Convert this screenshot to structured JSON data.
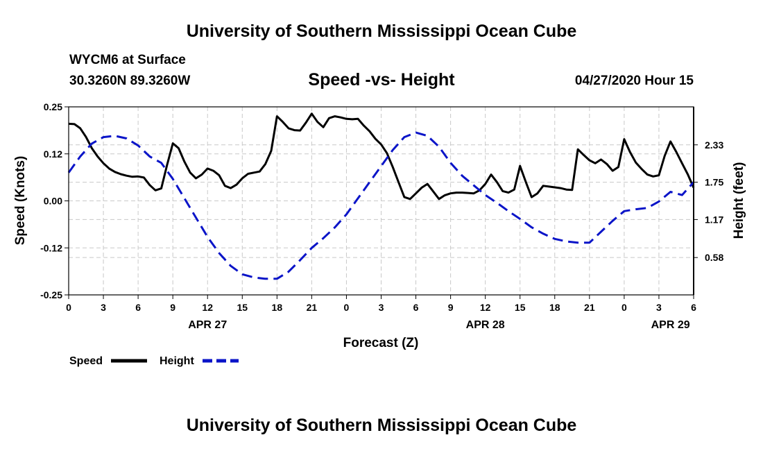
{
  "header": {
    "title": "University of Southern Mississippi Ocean Cube",
    "station": "WYCM6 at Surface",
    "coords": "30.3260N 89.3260W",
    "datetime": "04/27/2020 Hour 15"
  },
  "footer": {
    "title": "University of Southern Mississippi Ocean Cube"
  },
  "colors": {
    "speed": "#000000",
    "height": "#0a14c8",
    "grid": "#c8c8c8"
  },
  "chart_data": {
    "type": "line",
    "title": "Speed -vs- Height",
    "xlabel": "Forecast (Z)",
    "ylabel_left": "Speed (Knots)",
    "ylabel_right": "Height (feet)",
    "x_hours_range": [
      0,
      54
    ],
    "x_ticks": [
      {
        "h": 0,
        "label": "0"
      },
      {
        "h": 3,
        "label": "3"
      },
      {
        "h": 6,
        "label": "6"
      },
      {
        "h": 9,
        "label": "9"
      },
      {
        "h": 12,
        "label": "12"
      },
      {
        "h": 15,
        "label": "15"
      },
      {
        "h": 18,
        "label": "18"
      },
      {
        "h": 21,
        "label": "21"
      },
      {
        "h": 24,
        "label": "0"
      },
      {
        "h": 27,
        "label": "3"
      },
      {
        "h": 30,
        "label": "6"
      },
      {
        "h": 33,
        "label": "9"
      },
      {
        "h": 36,
        "label": "12"
      },
      {
        "h": 39,
        "label": "15"
      },
      {
        "h": 42,
        "label": "18"
      },
      {
        "h": 45,
        "label": "21"
      },
      {
        "h": 48,
        "label": "0"
      },
      {
        "h": 51,
        "label": "3"
      },
      {
        "h": 54,
        "label": "6"
      }
    ],
    "date_labels": [
      {
        "h": 12,
        "label": "APR 27"
      },
      {
        "h": 36,
        "label": "APR 28"
      },
      {
        "h": 52,
        "label": "APR 29"
      }
    ],
    "y_left_range": [
      -0.25,
      0.25
    ],
    "y_left_ticks": [
      {
        "v": 0.25,
        "label": "0.25"
      },
      {
        "v": 0.125,
        "label": "0.12"
      },
      {
        "v": 0.0,
        "label": "0.00"
      },
      {
        "v": -0.125,
        "label": "-0.12"
      },
      {
        "v": -0.25,
        "label": "-0.25"
      }
    ],
    "y_right_range": [
      0.0,
      2.92
    ],
    "y_right_ticks": [
      {
        "v": 2.33,
        "label": "2.33"
      },
      {
        "v": 1.75,
        "label": "1.75"
      },
      {
        "v": 1.17,
        "label": "1.17"
      },
      {
        "v": 0.58,
        "label": "0.58"
      }
    ],
    "grid": true,
    "legend": [
      {
        "name": "Speed",
        "style": "solid"
      },
      {
        "name": "Height",
        "style": "dashed"
      }
    ],
    "series": [
      {
        "name": "Speed",
        "axis": "left",
        "style": "solid",
        "x": [
          0,
          0.5,
          1,
          1.5,
          2,
          2.5,
          3,
          3.5,
          4,
          4.5,
          5,
          5.5,
          6,
          6.5,
          7,
          7.5,
          8,
          8.5,
          9,
          9.5,
          10,
          10.5,
          11,
          11.5,
          12,
          12.5,
          13,
          13.5,
          14,
          14.5,
          15,
          15.5,
          16,
          16.5,
          17,
          17.5,
          18,
          18.5,
          19,
          19.5,
          20,
          20.5,
          21,
          21.5,
          22,
          22.5,
          23,
          23.5,
          24,
          24.5,
          25,
          25.5,
          26,
          26.5,
          27,
          27.5,
          28,
          28.5,
          29,
          29.5,
          30,
          30.5,
          31,
          31.5,
          32,
          32.5,
          33,
          33.5,
          34,
          34.5,
          35,
          35.5,
          36,
          36.5,
          37,
          37.5,
          38,
          38.5,
          39,
          39.5,
          40,
          40.5,
          41,
          41.5,
          42,
          42.5,
          43,
          43.5,
          44,
          44.5,
          45,
          45.5,
          46,
          46.5,
          47,
          47.5,
          48,
          48.5,
          49,
          49.5,
          50,
          50.5,
          51,
          51.5,
          52,
          52.5,
          53,
          53.5,
          54
        ],
        "values": [
          0.205,
          0.204,
          0.193,
          0.17,
          0.14,
          0.118,
          0.1,
          0.086,
          0.077,
          0.071,
          0.067,
          0.064,
          0.065,
          0.062,
          0.042,
          0.028,
          0.033,
          0.095,
          0.153,
          0.14,
          0.104,
          0.075,
          0.06,
          0.07,
          0.086,
          0.08,
          0.068,
          0.04,
          0.034,
          0.043,
          0.06,
          0.072,
          0.075,
          0.078,
          0.098,
          0.133,
          0.225,
          0.21,
          0.193,
          0.188,
          0.187,
          0.208,
          0.232,
          0.21,
          0.196,
          0.22,
          0.225,
          0.222,
          0.218,
          0.217,
          0.218,
          0.2,
          0.185,
          0.165,
          0.15,
          0.127,
          0.09,
          0.05,
          0.01,
          0.005,
          0.02,
          0.035,
          0.045,
          0.025,
          0.005,
          0.015,
          0.02,
          0.022,
          0.022,
          0.021,
          0.02,
          0.028,
          0.045,
          0.07,
          0.05,
          0.026,
          0.022,
          0.03,
          0.093,
          0.05,
          0.01,
          0.02,
          0.04,
          0.038,
          0.036,
          0.034,
          0.03,
          0.029,
          0.137,
          0.122,
          0.108,
          0.1,
          0.11,
          0.098,
          0.08,
          0.09,
          0.164,
          0.13,
          0.102,
          0.085,
          0.07,
          0.065,
          0.068,
          0.12,
          0.158,
          0.13,
          0.1,
          0.07,
          0.035
        ]
      },
      {
        "name": "Height",
        "axis": "right",
        "style": "dashed",
        "x": [
          0,
          1,
          2,
          3,
          4,
          5,
          6,
          7,
          8,
          9,
          10,
          11,
          12,
          13,
          14,
          15,
          16,
          17,
          18,
          19,
          20,
          21,
          22,
          23,
          24,
          25,
          26,
          27,
          28,
          29,
          30,
          31,
          32,
          33,
          34,
          35,
          36,
          37,
          38,
          39,
          40,
          41,
          42,
          43,
          44,
          45,
          46,
          47,
          48,
          49,
          50,
          51,
          52,
          53,
          54
        ],
        "values": [
          1.9,
          2.15,
          2.35,
          2.45,
          2.47,
          2.43,
          2.32,
          2.15,
          2.05,
          1.8,
          1.5,
          1.2,
          0.9,
          0.65,
          0.45,
          0.32,
          0.27,
          0.25,
          0.25,
          0.36,
          0.54,
          0.73,
          0.88,
          1.05,
          1.25,
          1.5,
          1.75,
          2.0,
          2.25,
          2.45,
          2.52,
          2.47,
          2.3,
          2.05,
          1.85,
          1.7,
          1.55,
          1.43,
          1.3,
          1.18,
          1.05,
          0.95,
          0.87,
          0.83,
          0.81,
          0.81,
          0.98,
          1.15,
          1.3,
          1.33,
          1.35,
          1.45,
          1.6,
          1.55,
          1.75
        ]
      }
    ]
  }
}
